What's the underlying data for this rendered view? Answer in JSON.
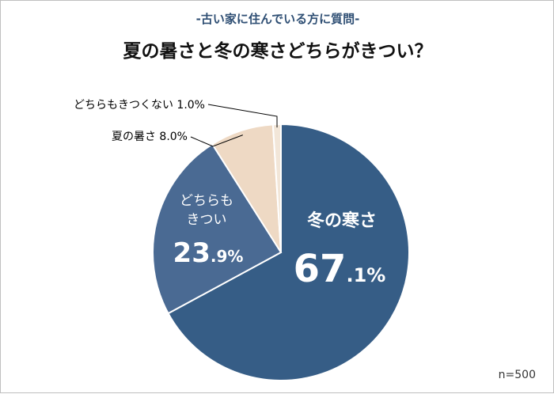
{
  "header": {
    "subtitle": "-古い家に住んでいる方に質問-",
    "title": "夏の暑さと冬の寒さどちらがきつい？"
  },
  "sample_size": "n=500",
  "colors": {
    "winter": "#365d86",
    "both": "#4a6a93",
    "summer": "#eed9c4",
    "neither": "#f2e6d8",
    "subtitle": "#2f4f74"
  },
  "chart_data": {
    "type": "pie",
    "title": "夏の暑さと冬の寒さどちらがきつい？",
    "slices": [
      {
        "label": "冬の寒さ",
        "value": 67.1,
        "color": "#365d86",
        "label_big": "67",
        "label_small": ".1%"
      },
      {
        "label": "どちらもきつい",
        "value": 23.9,
        "color": "#4a6a93",
        "label_big": "23",
        "label_small": ".9%"
      },
      {
        "label": "夏の暑さ",
        "value": 8.0,
        "color": "#eed9c4",
        "callout": "夏の暑さ 8.0%"
      },
      {
        "label": "どちらもきつくない",
        "value": 1.0,
        "color": "#f2e6d8",
        "callout": "どちらもきつくない 1.0%"
      }
    ]
  }
}
